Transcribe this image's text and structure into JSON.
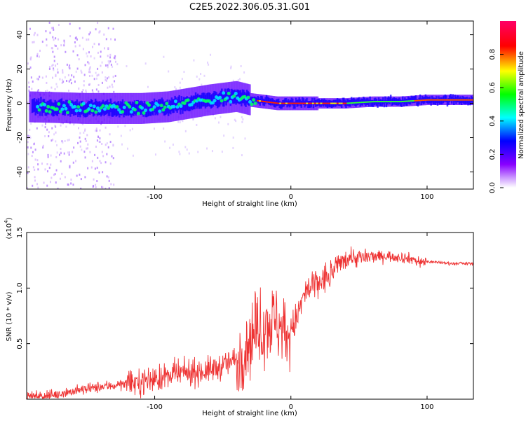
{
  "title": "C2E5.2022.306.05.31.G01",
  "chart_data": [
    {
      "type": "heatmap",
      "title": "",
      "xlabel": "Height of straight line (km)",
      "ylabel": "Frequency (Hz)",
      "xlim": [
        -194,
        134
      ],
      "ylim": [
        -50,
        48
      ],
      "xticks": [
        -100,
        0,
        100
      ],
      "xtick_labels": [
        "-100",
        "0",
        "100"
      ],
      "yticks": [
        -40,
        -20,
        0,
        20,
        40
      ],
      "ytick_labels": [
        "-40",
        "-20",
        "0",
        "20",
        "40"
      ],
      "ridge": {
        "x": [
          -194,
          -170,
          -150,
          -130,
          -110,
          -90,
          -75,
          -60,
          -50,
          -40,
          -35,
          -30,
          -20,
          -10,
          0,
          20,
          40,
          60,
          80,
          100,
          134
        ],
        "y": [
          -2,
          -2.5,
          -3,
          -3,
          -3,
          -2,
          0,
          2,
          3,
          4,
          3,
          2,
          1,
          0,
          0,
          0,
          0,
          1,
          1,
          2,
          2
        ]
      },
      "colorbar": {
        "label": "Normalized spectral amplitude",
        "range": [
          0,
          1
        ],
        "ticks": [
          0.0,
          0.2,
          0.4,
          0.6,
          0.8
        ],
        "tick_labels": [
          "0.0",
          "0.2",
          "0.4",
          "0.6",
          "0.8"
        ],
        "colormap": [
          "#ffffff",
          "#8800ff",
          "#0000ff",
          "#00ffff",
          "#00ff00",
          "#ffff00",
          "#ff0000",
          "#ff0066"
        ]
      },
      "grid": false
    },
    {
      "type": "line",
      "title": "",
      "xlabel": "Height of straight line (km)",
      "ylabel": "SNR (10 * v/v)",
      "yscale_label": "(x10",
      "yscale_exp": "4",
      "yscale_close": ")",
      "xlim": [
        -194,
        134
      ],
      "ylim": [
        0,
        1.5
      ],
      "xticks": [
        -100,
        0,
        100
      ],
      "xtick_labels": [
        "-100",
        "0",
        "100"
      ],
      "yticks": [
        0.5,
        1.0,
        1.5
      ],
      "ytick_labels": [
        "0.5",
        "1.0",
        "1.5"
      ],
      "series": [
        {
          "color": "#ee3333",
          "x": [
            -194,
            -180,
            -160,
            -140,
            -120,
            -100,
            -80,
            -60,
            -50,
            -40,
            -35,
            -30,
            -25,
            -20,
            -15,
            -10,
            -5,
            0,
            5,
            10,
            20,
            25,
            30,
            35,
            40,
            45,
            50,
            60,
            70,
            80,
            90,
            95,
            100,
            110,
            120,
            134
          ],
          "y": [
            0.02,
            0.03,
            0.07,
            0.11,
            0.14,
            0.18,
            0.23,
            0.26,
            0.3,
            0.36,
            0.45,
            0.55,
            0.62,
            0.66,
            0.7,
            0.7,
            0.6,
            0.62,
            0.75,
            0.95,
            1.05,
            1.08,
            1.13,
            1.22,
            1.27,
            1.28,
            1.27,
            1.28,
            1.29,
            1.28,
            1.26,
            1.23,
            1.24,
            1.23,
            1.22,
            1.22
          ]
        }
      ],
      "grid": false
    }
  ]
}
